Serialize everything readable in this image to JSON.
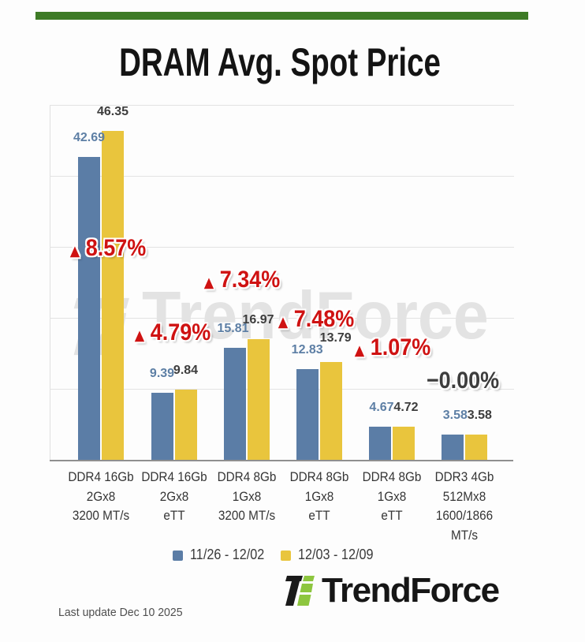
{
  "header": {
    "title": "DRAM Avg. Spot Price"
  },
  "chart_data": {
    "type": "bar",
    "title": "DRAM Avg. Spot Price",
    "categories": [
      [
        "DDR4 16Gb",
        "2Gx8",
        "3200 MT/s"
      ],
      [
        "DDR4 16Gb",
        "2Gx8",
        "eTT"
      ],
      [
        "DDR4 8Gb",
        "1Gx8",
        "3200 MT/s"
      ],
      [
        "DDR4 8Gb",
        "1Gx8",
        "eTT"
      ],
      [
        "DDR4 8Gb",
        "1Gx8",
        "eTT"
      ],
      [
        "DDR3 4Gb",
        "512Mx8",
        "1600/1866",
        "MT/s"
      ]
    ],
    "series": [
      {
        "name": "11/26 - 12/02",
        "color": "#5b7da6",
        "values": [
          42.69,
          9.39,
          15.81,
          12.83,
          4.67,
          3.58
        ]
      },
      {
        "name": "12/03 - 12/09",
        "color": "#e9c53d",
        "values": [
          46.35,
          9.84,
          16.97,
          13.79,
          4.72,
          3.58
        ]
      }
    ],
    "changes": [
      {
        "symbol": "▲",
        "text": "8.57%",
        "color": "#cf1212"
      },
      {
        "symbol": "▲",
        "text": "4.79%",
        "color": "#cf1212"
      },
      {
        "symbol": "▲",
        "text": "7.34%",
        "color": "#cf1212"
      },
      {
        "symbol": "▲",
        "text": "7.48%",
        "color": "#cf1212"
      },
      {
        "symbol": "▲",
        "text": "1.07%",
        "color": "#cf1212"
      },
      {
        "symbol": "−",
        "text": "0.00%",
        "color": "#3d3d3d"
      }
    ],
    "value_label_colors": {
      "series1": "#5d7fa5",
      "series2": "#3d3d3d"
    },
    "ylim": [
      0,
      50
    ],
    "grid": true,
    "legend_position": "bottom"
  },
  "watermark": {
    "text": "TrendForce"
  },
  "footer": {
    "last_update": "Last update Dec 10 2025",
    "brand": "TrendForce"
  },
  "colors": {
    "top_bar": "#3e7b26",
    "logo_green": "#8dc63f",
    "logo_black": "#1a1a1a"
  }
}
